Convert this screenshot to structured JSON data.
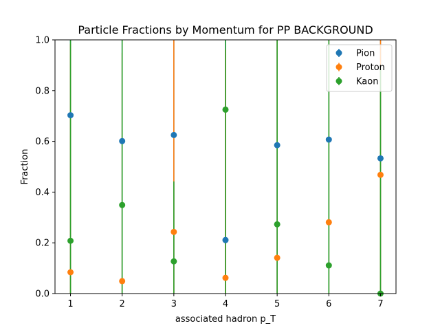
{
  "chart_data": {
    "type": "scatter",
    "title": "Particle Fractions by Momentum for PP BACKGROUND",
    "xlabel": "associated hadron p_T",
    "ylabel": "Fraction",
    "x": [
      1,
      2,
      3,
      4,
      5,
      6,
      7
    ],
    "xticks": [
      "1",
      "2",
      "3",
      "4",
      "5",
      "6",
      "7"
    ],
    "yticks": [
      "0.0",
      "0.2",
      "0.4",
      "0.6",
      "0.8",
      "1.0"
    ],
    "xlim": [
      0.7,
      7.3
    ],
    "ylim": [
      0,
      1
    ],
    "grid": false,
    "legend_position": "top-right",
    "series": [
      {
        "name": "Pion",
        "color": "#1f77b4",
        "values": [
          0.703,
          0.601,
          0.625,
          0.211,
          0.585,
          0.607,
          0.533
        ],
        "err_low": [
          0.703,
          0.601,
          0.625,
          0.211,
          0.585,
          0.607,
          0.533
        ],
        "err_high": [
          0.35,
          0.45,
          0.4,
          0.9,
          0.45,
          0.45,
          0.5
        ]
      },
      {
        "name": "Proton",
        "color": "#ff7f0e",
        "values": [
          0.084,
          0.049,
          0.243,
          0.062,
          0.141,
          0.281,
          0.468
        ],
        "err_low": [
          0.084,
          0.049,
          0.243,
          0.062,
          0.141,
          0.281,
          0.468
        ],
        "err_high": [
          0.9,
          0.9,
          0.8,
          0.9,
          0.9,
          0.8,
          0.6
        ]
      },
      {
        "name": "Kaon",
        "color": "#2ca02c",
        "values": [
          0.208,
          0.349,
          0.127,
          0.725,
          0.273,
          0.111,
          0.0
        ],
        "err_low": [
          0.208,
          0.349,
          0.127,
          0.725,
          0.273,
          0.111,
          0.0
        ],
        "err_high": [
          0.9,
          0.9,
          0.315,
          0.4,
          0.9,
          0.9,
          0.9
        ]
      }
    ]
  }
}
